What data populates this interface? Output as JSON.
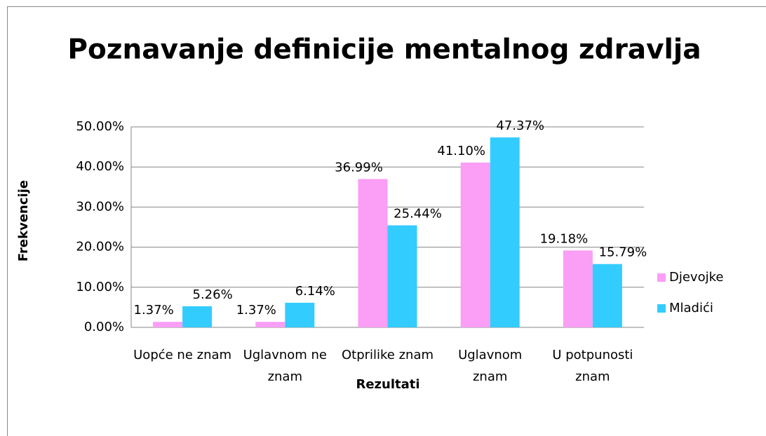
{
  "chart_data": {
    "type": "bar",
    "title": "Poznavanje definicije mentalnog zdravlja",
    "x_label": "Rezultati",
    "y_label": "Frekvencije",
    "categories": [
      "Uopće ne znam",
      "Uglavnom ne znam",
      "Otprilike znam",
      "Uglavnom znam",
      "U potpunosti znam"
    ],
    "series": [
      {
        "name": "Djevojke",
        "color": "#fa9ef6",
        "values": [
          1.37,
          1.37,
          36.99,
          41.1,
          19.18
        ],
        "value_labels": [
          "1.37%",
          "1.37%",
          "36.99%",
          "41.10%",
          "19.18%"
        ]
      },
      {
        "name": "Mladići",
        "color": "#33ccff",
        "values": [
          5.26,
          6.14,
          25.44,
          47.37,
          15.79
        ],
        "value_labels": [
          "5.26%",
          "6.14%",
          "25.44%",
          "47.37%",
          "15.79%"
        ]
      }
    ],
    "ylim": [
      0,
      50
    ],
    "yticks": [
      {
        "value": 0,
        "label": "0.00%"
      },
      {
        "value": 10,
        "label": "10.00%"
      },
      {
        "value": 20,
        "label": "20.00%"
      },
      {
        "value": 30,
        "label": "30.00%"
      },
      {
        "value": 40,
        "label": "40.00%"
      },
      {
        "value": 50,
        "label": "50.00%"
      }
    ],
    "grid": true,
    "legend": "right"
  }
}
